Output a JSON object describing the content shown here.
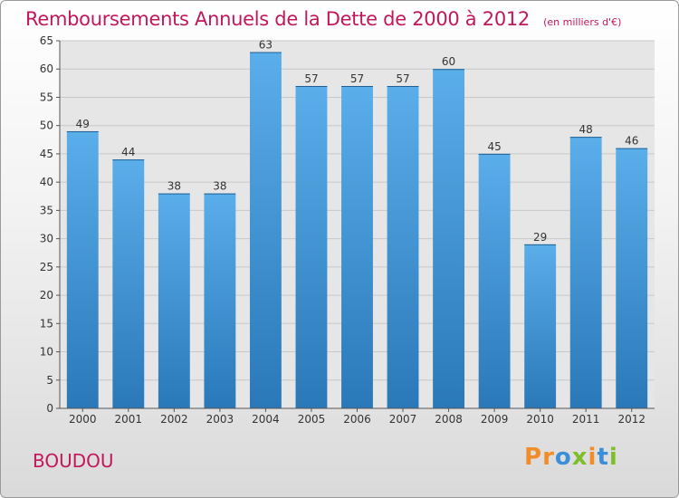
{
  "page": {
    "title": "Remboursements Annuels de la Dette de 2000 à 2012",
    "unit_note": "(en milliers d'€)",
    "commune": "BOUDOU"
  },
  "logo": {
    "letters": [
      "P",
      "r",
      "o",
      "x",
      "i",
      "t",
      "i"
    ],
    "colors": [
      "#f28c28",
      "#f28c28",
      "#3b8ed8",
      "#7cbf2a",
      "#f28c28",
      "#3b8ed8",
      "#7cbf2a"
    ]
  },
  "colors": {
    "accent": "#c2185b",
    "bar_light": "#5aaeea",
    "bar_dark": "#2a78b8"
  },
  "chart_data": {
    "type": "bar",
    "categories": [
      "2000",
      "2001",
      "2002",
      "2003",
      "2004",
      "2005",
      "2006",
      "2007",
      "2008",
      "2009",
      "2010",
      "2011",
      "2012"
    ],
    "values": [
      49,
      44,
      38,
      38,
      63,
      57,
      57,
      57,
      60,
      45,
      29,
      48,
      46
    ],
    "ylim": [
      0,
      65
    ],
    "yticks": [
      0,
      5,
      10,
      15,
      20,
      25,
      30,
      35,
      40,
      45,
      50,
      55,
      60,
      65
    ],
    "grid": true,
    "legend": "none"
  }
}
